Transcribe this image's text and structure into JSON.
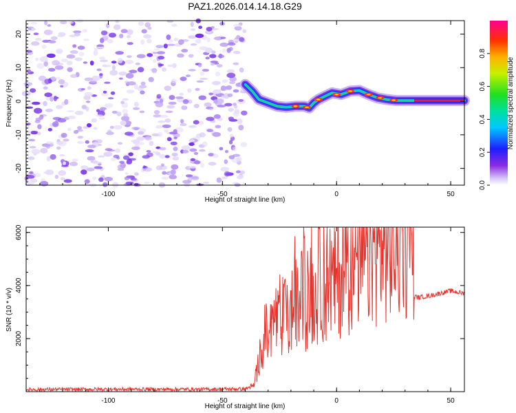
{
  "title": "PAZ1.2026.014.14.18.G29",
  "chart_data": [
    {
      "type": "heatmap",
      "name": "spectrogram",
      "xlabel": "Height of straight line (km)",
      "ylabel": "Frequency (Hz)",
      "xlim": [
        -136,
        56
      ],
      "ylim": [
        -25,
        24
      ],
      "xticks": [
        -100,
        -50,
        0,
        50
      ],
      "yticks": [
        -20,
        -10,
        0,
        10,
        20
      ],
      "noise_region_x": [
        -136,
        -40
      ],
      "ridge": {
        "x": [
          -40,
          -37,
          -34,
          -30,
          -26,
          -22,
          -18,
          -14,
          -12,
          -10,
          -8,
          -5,
          -2,
          2,
          6,
          10,
          14,
          18,
          22,
          26,
          30,
          34,
          56
        ],
        "f": [
          5,
          3,
          0.5,
          -0.5,
          -1.5,
          -1.8,
          -1.5,
          -1.5,
          -2,
          -0.5,
          0.5,
          1.5,
          2.5,
          2,
          3,
          3.2,
          2,
          1,
          0.5,
          0.2,
          0.2,
          0.2,
          0.2
        ]
      },
      "colorbar": {
        "label": "Normalized spectral amplitude",
        "range": [
          0,
          1
        ],
        "ticks": [
          "0.0",
          "0.2",
          "0.4",
          "0.6",
          "0.8"
        ]
      }
    },
    {
      "type": "line",
      "name": "snr",
      "xlabel": "Height of straight line (km)",
      "ylabel": "SNR (10 * v/v)",
      "xlim": [
        -136,
        56
      ],
      "ylim": [
        0,
        6200
      ],
      "xticks": [
        -100,
        -50,
        0,
        50
      ],
      "yticks": [
        2000,
        4000,
        6000
      ],
      "series": [
        {
          "name": "SNR",
          "color": "#e8322b",
          "x": [
            -136,
            -100,
            -60,
            -40,
            -36,
            -33,
            -31,
            -29,
            -27,
            -25,
            -23,
            -21,
            -19,
            -17,
            -15,
            -13,
            -11,
            -9,
            -7,
            -5,
            -3,
            -1,
            1,
            3,
            5,
            7,
            9,
            11,
            13,
            15,
            17,
            19,
            21,
            23,
            25,
            27,
            29,
            31,
            33,
            34,
            36,
            40,
            45,
            50,
            56
          ],
          "y": [
            80,
            90,
            90,
            100,
            250,
            1600,
            2200,
            1800,
            2900,
            2400,
            3000,
            2500,
            3300,
            3100,
            3600,
            3200,
            3700,
            3500,
            4200,
            3800,
            4300,
            4000,
            4400,
            4300,
            4700,
            4500,
            5100,
            4800,
            5200,
            5100,
            5400,
            5300,
            5500,
            5400,
            5600,
            5700,
            5800,
            5900,
            6000,
            3600,
            3550,
            3600,
            3700,
            3800,
            3700
          ]
        }
      ]
    }
  ]
}
